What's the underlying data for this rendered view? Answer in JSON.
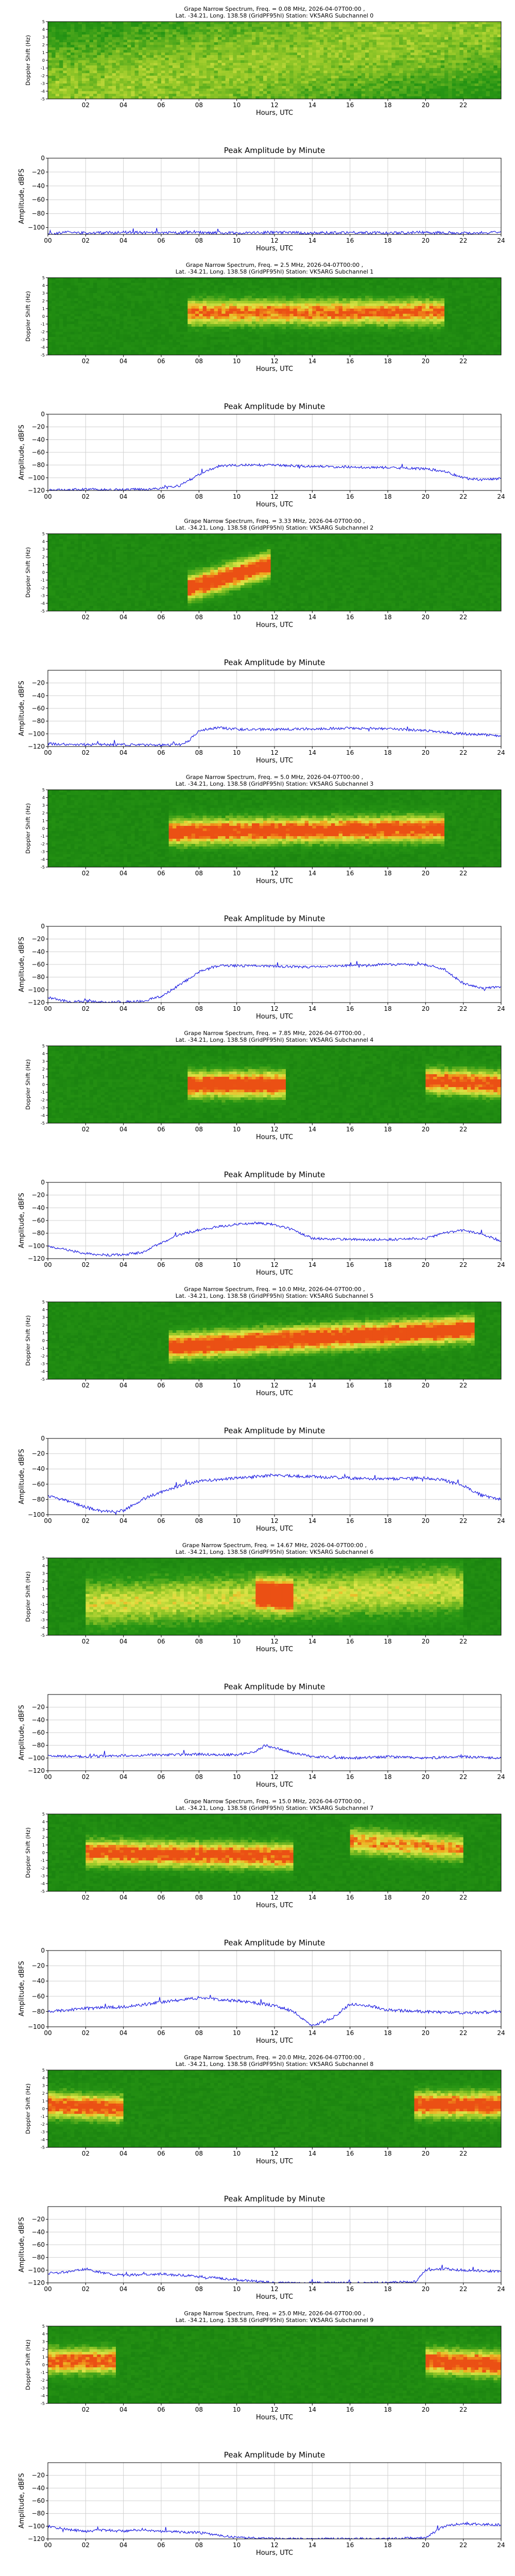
{
  "figure": {
    "header_line2": "Lat. -34.21, Long. 138.58 (GridPF95hl) Station: VK5ARG Subchannel",
    "x_ticks": [
      "00",
      "02",
      "04",
      "06",
      "08",
      "10",
      "12",
      "14",
      "16",
      "18",
      "20",
      "22",
      "24"
    ],
    "spec_x_ticks": [
      "02",
      "04",
      "06",
      "08",
      "10",
      "12",
      "14",
      "16",
      "18",
      "20",
      "22"
    ],
    "doppler_ticks": [
      "-5",
      "-4",
      "-3",
      "-2",
      "-1",
      "0",
      "1",
      "2",
      "3",
      "4",
      "5"
    ],
    "colors": {
      "line": "#1010e0",
      "spec_low": "#0a7a0a",
      "spec_mid": "#d8e040",
      "spec_high": "#f08010"
    }
  },
  "chart_data": [
    {
      "type": "heatmap",
      "title": "Grape Narrow Spectrum, Freq. = 0.08 MHz, 2026-04-07T00:00 ,",
      "subtitle": "Lat. -34.21, Long. 138.58 (GridPF95hl) Station: VK5ARG Subchannel 0",
      "xlabel": "Hours, UTC",
      "ylabel": "Doppler Shift (Hz)",
      "xlim": [
        0,
        24
      ],
      "ylim": [
        -5,
        5
      ],
      "features": [
        {
          "label": "uniform noise",
          "t": [
            0,
            24
          ],
          "doppler": [
            -5,
            5
          ],
          "intensity": 0.35
        }
      ]
    },
    {
      "type": "line",
      "title": "Peak Amplitude by Minute",
      "xlabel": "Hours, UTC",
      "ylabel": "Amplitude, dBFS",
      "xlim": [
        0,
        24
      ],
      "ylim": [
        -110,
        0
      ],
      "y_ticks": [
        0,
        -20,
        -40,
        -60,
        -80,
        -100
      ],
      "x": [
        0,
        1,
        2,
        4,
        6,
        8,
        10,
        12,
        14,
        16,
        18,
        20,
        22,
        24
      ],
      "values": [
        -110,
        -107,
        -108,
        -107,
        -108,
        -107,
        -108,
        -107,
        -108,
        -107,
        -108,
        -107,
        -108,
        -107
      ]
    },
    {
      "type": "heatmap",
      "title": "Grape Narrow Spectrum, Freq. = 2.5 MHz, 2026-04-07T00:00 ,",
      "subtitle": "Lat. -34.21, Long. 138.58 (GridPF95hl) Station: VK5ARG Subchannel 1",
      "xlabel": "Hours, UTC",
      "ylabel": "Doppler Shift (Hz)",
      "xlim": [
        0,
        24
      ],
      "ylim": [
        -5,
        5
      ],
      "features": [
        {
          "label": "trace",
          "t": [
            7.5,
            21
          ],
          "doppler": [
            0.5,
            0.5
          ],
          "intensity": 0.8
        }
      ]
    },
    {
      "type": "line",
      "title": "Peak Amplitude by Minute",
      "xlabel": "Hours, UTC",
      "ylabel": "Amplitude, dBFS",
      "xlim": [
        0,
        24
      ],
      "ylim": [
        -120,
        0
      ],
      "y_ticks": [
        0,
        -20,
        -40,
        -60,
        -80,
        -100,
        -120
      ],
      "x": [
        0,
        1,
        2,
        3,
        4,
        5,
        6,
        7,
        8,
        9,
        10,
        12,
        14,
        16,
        18,
        20,
        21,
        22,
        23,
        24
      ],
      "values": [
        -120,
        -119,
        -118,
        -119,
        -119,
        -118,
        -117,
        -112,
        -95,
        -82,
        -80,
        -80,
        -82,
        -83,
        -84,
        -86,
        -90,
        -100,
        -103,
        -101
      ]
    },
    {
      "type": "heatmap",
      "title": "Grape Narrow Spectrum, Freq. = 3.33 MHz, 2026-04-07T00:00 ,",
      "subtitle": "Lat. -34.21, Long. 138.58 (GridPF95hl) Station: VK5ARG Subchannel 2",
      "xlabel": "Hours, UTC",
      "ylabel": "Doppler Shift (Hz)",
      "xlim": [
        0,
        24
      ],
      "ylim": [
        -5,
        5
      ],
      "features": [
        {
          "label": "trace",
          "t": [
            7.5,
            11.8
          ],
          "doppler": [
            -2.0,
            1.0
          ],
          "intensity": 1.0
        }
      ]
    },
    {
      "type": "line",
      "title": "Peak Amplitude by Minute",
      "xlabel": "Hours, UTC",
      "ylabel": "Amplitude, dBFS",
      "xlim": [
        0,
        24
      ],
      "ylim": [
        -120,
        0
      ],
      "y_ticks": [
        -20,
        -40,
        -60,
        -80,
        -100,
        -120
      ],
      "x": [
        0,
        2,
        4,
        6,
        7,
        7.5,
        8,
        9,
        10,
        12,
        14,
        16,
        18,
        20,
        22,
        24
      ],
      "values": [
        -116,
        -117,
        -117,
        -118,
        -117,
        -110,
        -95,
        -90,
        -93,
        -93,
        -92,
        -91,
        -92,
        -95,
        -100,
        -103
      ]
    },
    {
      "type": "heatmap",
      "title": "Grape Narrow Spectrum, Freq. = 5.0 MHz, 2026-04-07T00:00 ,",
      "subtitle": "Lat. -34.21, Long. 138.58 (GridPF95hl) Station: VK5ARG Subchannel 3",
      "xlabel": "Hours, UTC",
      "ylabel": "Doppler Shift (Hz)",
      "xlim": [
        0,
        24
      ],
      "ylim": [
        -5,
        5
      ],
      "features": [
        {
          "label": "trace",
          "t": [
            6.5,
            21
          ],
          "doppler": [
            -0.5,
            0.0
          ],
          "intensity": 0.95
        }
      ]
    },
    {
      "type": "line",
      "title": "Peak Amplitude by Minute",
      "xlabel": "Hours, UTC",
      "ylabel": "Amplitude, dBFS",
      "xlim": [
        0,
        24
      ],
      "ylim": [
        -120,
        0
      ],
      "y_ticks": [
        0,
        -20,
        -40,
        -60,
        -80,
        -100,
        -120
      ],
      "x": [
        0,
        1,
        2,
        3,
        4,
        5,
        6,
        7,
        8,
        9,
        10,
        12,
        14,
        16,
        18,
        20,
        21,
        22,
        23,
        24
      ],
      "values": [
        -112,
        -118,
        -118,
        -119,
        -119,
        -118,
        -110,
        -92,
        -72,
        -62,
        -62,
        -63,
        -64,
        -62,
        -60,
        -60,
        -68,
        -90,
        -98,
        -95
      ]
    },
    {
      "type": "heatmap",
      "title": "Grape Narrow Spectrum, Freq. = 7.85 MHz, 2026-04-07T00:00 ,",
      "subtitle": "Lat. -34.21, Long. 138.58 (GridPF95hl) Station: VK5ARG Subchannel 4",
      "xlabel": "Hours, UTC",
      "ylabel": "Doppler Shift (Hz)",
      "xlim": [
        0,
        24
      ],
      "ylim": [
        -5,
        5
      ],
      "features": [
        {
          "label": "trace",
          "t": [
            7.5,
            12.5
          ],
          "doppler": [
            0.0,
            0.0
          ],
          "intensity": 1.0
        },
        {
          "label": "trace",
          "t": [
            20,
            24
          ],
          "doppler": [
            0.5,
            0.0
          ],
          "intensity": 0.9
        }
      ]
    },
    {
      "type": "line",
      "title": "Peak Amplitude by Minute",
      "xlabel": "Hours, UTC",
      "ylabel": "Amplitude, dBFS",
      "xlim": [
        0,
        24
      ],
      "ylim": [
        -120,
        0
      ],
      "y_ticks": [
        0,
        -20,
        -40,
        -60,
        -80,
        -100,
        -120
      ],
      "x": [
        0,
        1,
        2,
        3,
        4,
        5,
        6,
        7,
        8,
        9,
        10,
        11,
        12,
        13,
        14,
        16,
        18,
        20,
        21,
        22,
        23,
        24
      ],
      "values": [
        -100,
        -106,
        -112,
        -114,
        -114,
        -110,
        -95,
        -82,
        -75,
        -70,
        -66,
        -64,
        -66,
        -75,
        -88,
        -90,
        -90,
        -88,
        -80,
        -75,
        -82,
        -92
      ]
    },
    {
      "type": "heatmap",
      "title": "Grape Narrow Spectrum, Freq. = 10.0 MHz, 2026-04-07T00:00 ,",
      "subtitle": "Lat. -34.21, Long. 138.58 (GridPF95hl) Station: VK5ARG Subchannel 5",
      "xlabel": "Hours, UTC",
      "ylabel": "Doppler Shift (Hz)",
      "xlim": [
        0,
        24
      ],
      "ylim": [
        -5,
        5
      ],
      "features": [
        {
          "label": "trace",
          "t": [
            6.5,
            22.5
          ],
          "doppler": [
            -0.8,
            1.5
          ],
          "intensity": 1.0
        }
      ]
    },
    {
      "type": "line",
      "title": "Peak Amplitude by Minute",
      "xlabel": "Hours, UTC",
      "ylabel": "Amplitude, dBFS",
      "xlim": [
        0,
        24
      ],
      "ylim": [
        -100,
        0
      ],
      "y_ticks": [
        0,
        -20,
        -40,
        -60,
        -80,
        -100
      ],
      "x": [
        0,
        1,
        2,
        3,
        4,
        5,
        6,
        7,
        8,
        9,
        10,
        12,
        14,
        16,
        18,
        20,
        21,
        22,
        23,
        24
      ],
      "values": [
        -75,
        -82,
        -90,
        -96,
        -95,
        -80,
        -70,
        -62,
        -56,
        -54,
        -52,
        -48,
        -50,
        -52,
        -53,
        -52,
        -55,
        -62,
        -75,
        -80
      ]
    },
    {
      "type": "heatmap",
      "title": "Grape Narrow Spectrum, Freq. = 14.67 MHz, 2026-04-07T00:00 ,",
      "subtitle": "Lat. -34.21, Long. 138.58 (GridPF95hl) Station: VK5ARG Subchannel 6",
      "xlabel": "Hours, UTC",
      "ylabel": "Doppler Shift (Hz)",
      "xlim": [
        0,
        24
      ],
      "ylim": [
        -5,
        5
      ],
      "features": [
        {
          "label": "trace",
          "t": [
            11.0,
            13.0
          ],
          "doppler": [
            0.5,
            0.0
          ],
          "intensity": 0.95
        },
        {
          "label": "diffuse",
          "t": [
            2,
            22
          ],
          "doppler": [
            -1,
            1
          ],
          "intensity": 0.5
        }
      ]
    },
    {
      "type": "line",
      "title": "Peak Amplitude by Minute",
      "xlabel": "Hours, UTC",
      "ylabel": "Amplitude, dBFS",
      "xlim": [
        0,
        24
      ],
      "ylim": [
        -120,
        0
      ],
      "y_ticks": [
        -20,
        -40,
        -60,
        -80,
        -100,
        -120
      ],
      "x": [
        0,
        2,
        4,
        6,
        8,
        10,
        11,
        11.5,
        12,
        13,
        14,
        16,
        18,
        20,
        22,
        24
      ],
      "values": [
        -96,
        -98,
        -96,
        -95,
        -94,
        -95,
        -90,
        -80,
        -84,
        -92,
        -98,
        -100,
        -98,
        -100,
        -98,
        -100
      ]
    },
    {
      "type": "heatmap",
      "title": "Grape Narrow Spectrum, Freq. = 15.0 MHz, 2026-04-07T00:00 ,",
      "subtitle": "Lat. -34.21, Long. 138.58 (GridPF95hl) Station: VK5ARG Subchannel 7",
      "xlabel": "Hours, UTC",
      "ylabel": "Doppler Shift (Hz)",
      "xlim": [
        0,
        24
      ],
      "ylim": [
        -5,
        5
      ],
      "features": [
        {
          "label": "trace",
          "t": [
            2,
            13
          ],
          "doppler": [
            0.0,
            -0.5
          ],
          "intensity": 0.9
        },
        {
          "label": "trace",
          "t": [
            16,
            22
          ],
          "doppler": [
            1.5,
            0.5
          ],
          "intensity": 0.7
        }
      ]
    },
    {
      "type": "line",
      "title": "Peak Amplitude by Minute",
      "xlabel": "Hours, UTC",
      "ylabel": "Amplitude, dBFS",
      "xlim": [
        0,
        24
      ],
      "ylim": [
        -100,
        0
      ],
      "y_ticks": [
        0,
        -20,
        -40,
        -60,
        -80,
        -100
      ],
      "x": [
        0,
        2,
        4,
        6,
        8,
        10,
        12,
        13,
        14,
        15,
        16,
        17,
        18,
        20,
        22,
        24
      ],
      "values": [
        -80,
        -76,
        -74,
        -68,
        -62,
        -66,
        -72,
        -80,
        -98,
        -90,
        -70,
        -72,
        -78,
        -80,
        -82,
        -80
      ]
    },
    {
      "type": "heatmap",
      "title": "Grape Narrow Spectrum, Freq. = 20.0 MHz, 2026-04-07T00:00 ,",
      "subtitle": "Lat. -34.21, Long. 138.58 (GridPF95hl) Station: VK5ARG Subchannel 8",
      "xlabel": "Hours, UTC",
      "ylabel": "Doppler Shift (Hz)",
      "xlim": [
        0,
        24
      ],
      "ylim": [
        -5,
        5
      ],
      "features": [
        {
          "label": "trace",
          "t": [
            0,
            4
          ],
          "doppler": [
            0.5,
            0.0
          ],
          "intensity": 0.9
        },
        {
          "label": "trace",
          "t": [
            19.5,
            24
          ],
          "doppler": [
            0.5,
            0.5
          ],
          "intensity": 0.95
        }
      ]
    },
    {
      "type": "line",
      "title": "Peak Amplitude by Minute",
      "xlabel": "Hours, UTC",
      "ylabel": "Amplitude, dBFS",
      "xlim": [
        0,
        24
      ],
      "ylim": [
        -120,
        0
      ],
      "y_ticks": [
        -20,
        -40,
        -60,
        -80,
        -100,
        -120
      ],
      "x": [
        0,
        1,
        2,
        3,
        4,
        6,
        8,
        10,
        12,
        14,
        16,
        18,
        19.5,
        20,
        21,
        22,
        24
      ],
      "values": [
        -105,
        -103,
        -98,
        -105,
        -108,
        -106,
        -110,
        -115,
        -120,
        -120,
        -120,
        -120,
        -118,
        -100,
        -98,
        -100,
        -102
      ]
    },
    {
      "type": "heatmap",
      "title": "Grape Narrow Spectrum, Freq. = 25.0 MHz, 2026-04-07T00:00 ,",
      "subtitle": "Lat. -34.21, Long. 138.58 (GridPF95hl) Station: VK5ARG Subchannel 9",
      "xlabel": "Hours, UTC",
      "ylabel": "Doppler Shift (Hz)",
      "xlim": [
        0,
        24
      ],
      "ylim": [
        -5,
        5
      ],
      "features": [
        {
          "label": "trace",
          "t": [
            0,
            3.5
          ],
          "doppler": [
            0.5,
            0.5
          ],
          "intensity": 0.85
        },
        {
          "label": "trace",
          "t": [
            20,
            24
          ],
          "doppler": [
            0.5,
            0.0
          ],
          "intensity": 0.95
        }
      ]
    },
    {
      "type": "line",
      "title": "Peak Amplitude by Minute",
      "xlabel": "Hours, UTC",
      "ylabel": "Amplitude, dBFS",
      "xlim": [
        0,
        24
      ],
      "ylim": [
        -120,
        0
      ],
      "y_ticks": [
        -20,
        -40,
        -60,
        -80,
        -100,
        -120
      ],
      "x": [
        0,
        1,
        2,
        3,
        4,
        5,
        6,
        8,
        10,
        12,
        14,
        16,
        18,
        20,
        21,
        22,
        24
      ],
      "values": [
        -100,
        -105,
        -108,
        -106,
        -108,
        -105,
        -108,
        -110,
        -118,
        -120,
        -120,
        -120,
        -120,
        -118,
        -100,
        -96,
        -98
      ]
    }
  ]
}
